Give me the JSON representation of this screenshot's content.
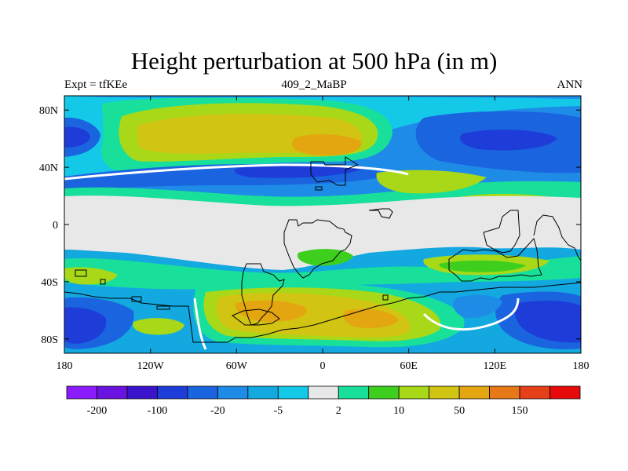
{
  "title": "Height perturbation at 500 hPa (in m)",
  "left_label": "Expt = tfKEe",
  "center_label": "409_2_MaBP",
  "right_label": "ANN",
  "chart_data": {
    "type": "heatmap",
    "variable": "Height perturbation at 500 hPa",
    "units": "m",
    "projection": "cylindrical equidistant",
    "xlim": [
      -180,
      180
    ],
    "ylim": [
      -90,
      90
    ],
    "x_ticks": [
      {
        "value": -180,
        "label": "180"
      },
      {
        "value": -120,
        "label": "120W"
      },
      {
        "value": -60,
        "label": "60W"
      },
      {
        "value": 0,
        "label": "0"
      },
      {
        "value": 60,
        "label": "60E"
      },
      {
        "value": 120,
        "label": "120E"
      },
      {
        "value": 180,
        "label": "180"
      }
    ],
    "y_ticks": [
      {
        "value": 80,
        "label": "80N"
      },
      {
        "value": 40,
        "label": "40N"
      },
      {
        "value": 0,
        "label": "0"
      },
      {
        "value": -40,
        "label": "40S"
      },
      {
        "value": -80,
        "label": "80S"
      }
    ],
    "colorbar": {
      "colors": [
        "#8c1aff",
        "#6a12e0",
        "#3a14cc",
        "#1e3cd8",
        "#1a64e0",
        "#1e8ce6",
        "#13a8e0",
        "#14c8e8",
        "#e8e8e8",
        "#18e09a",
        "#3ecf1e",
        "#a8d818",
        "#d2c412",
        "#e4a610",
        "#e67818",
        "#e64018",
        "#e60a0a"
      ],
      "labels": [
        {
          "after_box": 1,
          "text": "-200"
        },
        {
          "after_box": 3,
          "text": "-100"
        },
        {
          "after_box": 5,
          "text": "-20"
        },
        {
          "after_box": 7,
          "text": "-5"
        },
        {
          "after_box": 9,
          "text": "2"
        },
        {
          "after_box": 11,
          "text": "10"
        },
        {
          "after_box": 13,
          "text": "50"
        },
        {
          "after_box": 15,
          "text": "150"
        }
      ]
    },
    "features": [
      {
        "kind": "band",
        "lat": 5,
        "lon_range": [
          -180,
          180
        ],
        "level": 0
      },
      {
        "kind": "blob",
        "lat": 65,
        "lon": -20,
        "rlat": 18,
        "rlon": 70,
        "value": 60
      },
      {
        "kind": "blob",
        "lat": 70,
        "lon": 0,
        "rlat": 8,
        "rlon": 25,
        "value": 120
      },
      {
        "kind": "blob",
        "lat": 60,
        "lon": 140,
        "rlat": 15,
        "rlon": 50,
        "value": -60
      },
      {
        "kind": "blob",
        "lat": 40,
        "lon": -30,
        "rlat": 6,
        "rlon": 50,
        "value": -40
      },
      {
        "kind": "blob",
        "lat": 35,
        "lon": 80,
        "rlat": 8,
        "rlon": 40,
        "value": 10
      },
      {
        "kind": "blob",
        "lat": -60,
        "lon": -20,
        "rlat": 15,
        "rlon": 60,
        "value": 80
      },
      {
        "kind": "blob",
        "lat": -70,
        "lon": 140,
        "rlat": 15,
        "rlon": 40,
        "value": -80
      },
      {
        "kind": "blob",
        "lat": -70,
        "lon": -170,
        "rlat": 15,
        "rlon": 30,
        "value": -60
      },
      {
        "kind": "blob",
        "lat": -40,
        "lon": 120,
        "rlat": 8,
        "rlon": 30,
        "value": 15
      }
    ]
  }
}
